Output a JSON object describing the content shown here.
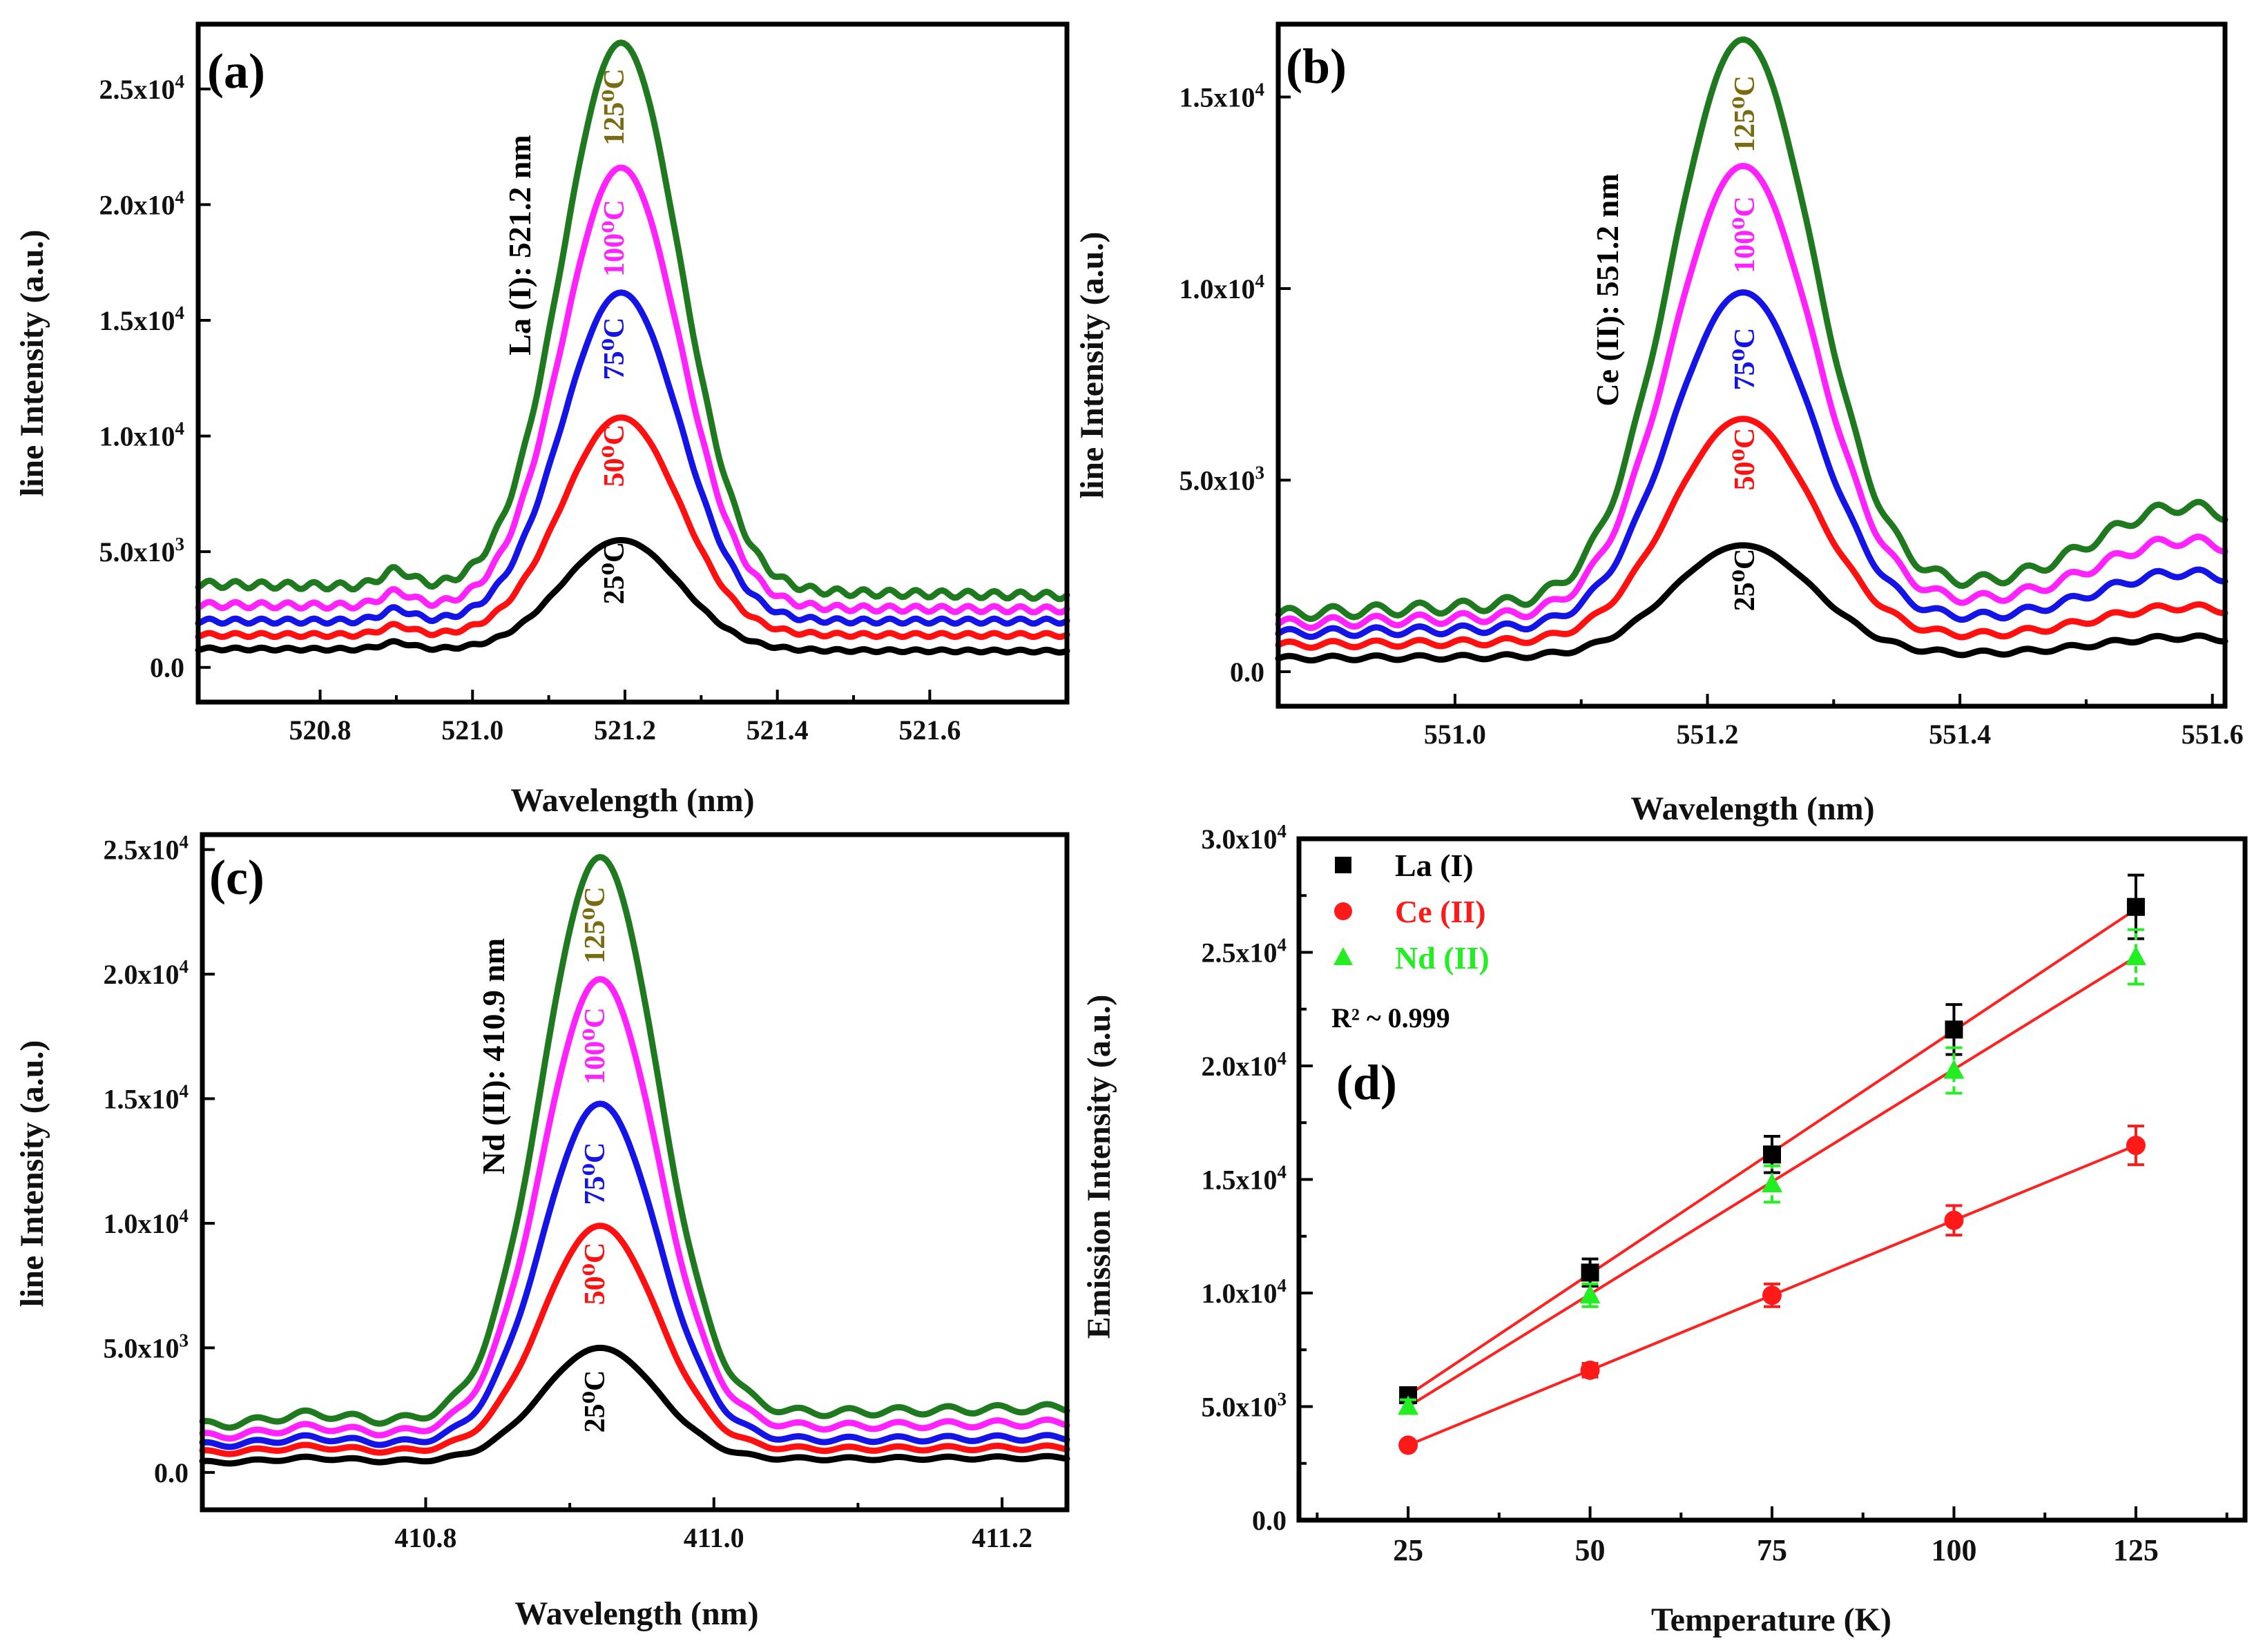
{
  "colors": {
    "25": "#000000",
    "50": "#ff1010",
    "75": "#1414e6",
    "100": "#ff22ff",
    "125": "#1f7a1f",
    "label125": "#7a6a10",
    "la": "#000000",
    "ce": "#ff1a1a",
    "nd": "#22ee22",
    "fit": "#ff2020"
  },
  "temperature_labels": [
    {
      "key": "25",
      "text": "25⁰C"
    },
    {
      "key": "50",
      "text": "50⁰C"
    },
    {
      "key": "75",
      "text": "75⁰C"
    },
    {
      "key": "100",
      "text": "100⁰C"
    },
    {
      "key": "125",
      "text": "125⁰C"
    }
  ],
  "chart_data": [
    {
      "id": "a",
      "type": "line",
      "panel_label": "(a)",
      "line_label": "La (I): 521.2 nm",
      "xlabel": "Wavelength (nm)",
      "ylabel": "line Intensity (a.u.)",
      "xlim": [
        520.64,
        521.78
      ],
      "ylim": [
        -1500,
        27800
      ],
      "xticks": [
        520.8,
        521.0,
        521.2,
        521.4,
        521.6
      ],
      "xtick_labels": [
        "520.8",
        "521.0",
        "521.2",
        "521.4",
        "521.6"
      ],
      "yticks": [
        0,
        5000,
        10000,
        15000,
        20000,
        25000
      ],
      "ytick_labels": [
        {
          "base": "0.0",
          "exp": ""
        },
        {
          "base": "5.0x10",
          "exp": "3"
        },
        {
          "base": "1.0x10",
          "exp": "4"
        },
        {
          "base": "1.5x10",
          "exp": "4"
        },
        {
          "base": "2.0x10",
          "exp": "4"
        },
        {
          "base": "2.5x10",
          "exp": "4"
        }
      ],
      "center": 521.195,
      "sigma": 0.077,
      "peaks": {
        "25": 5500,
        "50": 10800,
        "75": 16200,
        "100": 21600,
        "125": 27000
      },
      "baseline_left": {
        "25": 800,
        "50": 1400,
        "75": 2000,
        "100": 2700,
        "125": 3600
      },
      "baseline_right": {
        "25": 700,
        "50": 1400,
        "75": 2000,
        "100": 2500,
        "125": 3100
      },
      "shoulder": {
        "pos": 520.9,
        "width": 0.02,
        "amp": 500
      },
      "second_peak": null
    },
    {
      "id": "b",
      "type": "line",
      "panel_label": "(b)",
      "line_label": "Ce (II): 551.2 nm",
      "xlabel": "Wavelength (nm)",
      "ylabel": "line Intensity (a.u.)",
      "xlim": [
        550.86,
        551.61
      ],
      "ylim": [
        -900,
        16900
      ],
      "xticks": [
        551.0,
        551.2,
        551.4,
        551.6
      ],
      "xtick_labels": [
        "551.0",
        "551.2",
        "551.4",
        "551.6"
      ],
      "yticks": [
        0,
        5000,
        10000,
        15000
      ],
      "ytick_labels": [
        {
          "base": "0.0",
          "exp": ""
        },
        {
          "base": "5.0x10",
          "exp": "3"
        },
        {
          "base": "1.0x10",
          "exp": "4"
        },
        {
          "base": "1.5x10",
          "exp": "4"
        }
      ],
      "center": 551.228,
      "sigma": 0.056,
      "peaks": {
        "25": 3300,
        "50": 6600,
        "75": 9900,
        "100": 13200,
        "125": 16500
      },
      "baseline_left": {
        "25": 350,
        "50": 700,
        "75": 1000,
        "100": 1250,
        "125": 1500
      },
      "baseline_right": {
        "25": 500,
        "50": 1000,
        "75": 1500,
        "100": 2000,
        "125": 2500
      },
      "shoulder": null,
      "second_peak": {
        "pos": 551.575,
        "width": 0.065,
        "amp": {
          "25": 400,
          "50": 700,
          "75": 1100,
          "100": 1450,
          "125": 1850
        }
      }
    },
    {
      "id": "c",
      "type": "line",
      "panel_label": "(c)",
      "line_label": "Nd (II): 410.9 nm",
      "xlabel": "Wavelength (nm)",
      "ylabel": "line Intensity (a.u.)",
      "xlim": [
        410.645,
        411.245
      ],
      "ylim": [
        -1500,
        25600
      ],
      "xticks": [
        410.8,
        411.0,
        411.2
      ],
      "xtick_labels": [
        "410.8",
        "411.0",
        "411.2"
      ],
      "yticks": [
        0,
        5000,
        10000,
        15000,
        20000,
        25000
      ],
      "ytick_labels": [
        {
          "base": "0.0",
          "exp": ""
        },
        {
          "base": "5.0x10",
          "exp": "3"
        },
        {
          "base": "1.0x10",
          "exp": "4"
        },
        {
          "base": "1.5x10",
          "exp": "4"
        },
        {
          "base": "2.0x10",
          "exp": "4"
        },
        {
          "base": "2.5x10",
          "exp": "4"
        }
      ],
      "center": 410.921,
      "sigma": 0.04,
      "peaks": {
        "25": 5000,
        "50": 9900,
        "75": 14800,
        "100": 19800,
        "125": 24700
      },
      "baseline_left": {
        "25": 400,
        "50": 800,
        "75": 1100,
        "100": 1450,
        "125": 1900
      },
      "baseline_right": {
        "25": 600,
        "50": 1000,
        "75": 1400,
        "100": 2000,
        "125": 2600
      },
      "shoulder": {
        "pos": 410.72,
        "width": 0.025,
        "amp": 250
      },
      "second_peak": null
    },
    {
      "id": "d",
      "type": "scatter",
      "panel_label": "(d)",
      "xlabel": "Temperature (K)",
      "ylabel": "Emission Intensity (a.u.)",
      "annotation": "R² ~ 0.999",
      "xlim": [
        10,
        140
      ],
      "ylim": [
        0,
        30000
      ],
      "xticks": [
        25,
        50,
        75,
        100,
        125
      ],
      "xtick_labels": [
        "25",
        "50",
        "75",
        "100",
        "125"
      ],
      "yticks": [
        0,
        5000,
        10000,
        15000,
        20000,
        25000,
        30000
      ],
      "ytick_labels": [
        {
          "base": "0.0",
          "exp": ""
        },
        {
          "base": "5.0x10",
          "exp": "3"
        },
        {
          "base": "1.0x10",
          "exp": "4"
        },
        {
          "base": "1.5x10",
          "exp": "4"
        },
        {
          "base": "2.0x10",
          "exp": "4"
        },
        {
          "base": "2.5x10",
          "exp": "4"
        },
        {
          "base": "3.0x10",
          "exp": "4"
        }
      ],
      "series": [
        {
          "name": "La (I)",
          "marker": "square",
          "color_key": "la",
          "x": [
            25,
            50,
            75,
            100,
            125
          ],
          "y": [
            5500,
            10900,
            16100,
            21600,
            27000
          ],
          "err": [
            300,
            600,
            800,
            1100,
            1400
          ],
          "fit": [
            5500,
            26900
          ]
        },
        {
          "name": "Ce (II)",
          "marker": "circle",
          "color_key": "ce",
          "x": [
            25,
            50,
            75,
            100,
            125
          ],
          "y": [
            3300,
            6600,
            9900,
            13200,
            16500
          ],
          "err": [
            150,
            300,
            500,
            650,
            850
          ],
          "fit": [
            3300,
            16500
          ]
        },
        {
          "name": "Nd (II)",
          "marker": "triangle",
          "color_key": "nd",
          "x": [
            25,
            50,
            75,
            100,
            125
          ],
          "y": [
            5000,
            9900,
            14800,
            19800,
            24800
          ],
          "err": [
            300,
            500,
            800,
            1000,
            1200
          ],
          "fit": [
            5000,
            24800
          ]
        }
      ]
    }
  ]
}
